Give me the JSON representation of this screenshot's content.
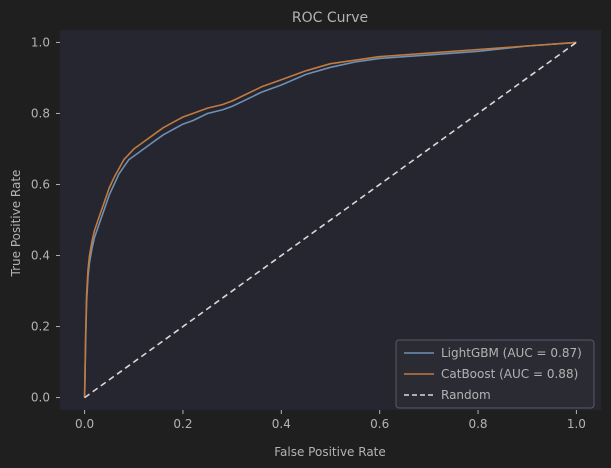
{
  "chart_data": {
    "type": "line",
    "title": "ROC Curve",
    "xlabel": "False Positive Rate",
    "ylabel": "True Positive Rate",
    "xlim": [
      -0.05,
      1.05
    ],
    "ylim": [
      -0.035,
      1.035
    ],
    "xticks": [
      0.0,
      0.2,
      0.4,
      0.6,
      0.8,
      1.0
    ],
    "yticks": [
      0.0,
      0.2,
      0.4,
      0.6,
      0.8,
      1.0
    ],
    "xtick_labels": [
      "0.0",
      "0.2",
      "0.4",
      "0.6",
      "0.8",
      "1.0"
    ],
    "ytick_labels": [
      "0.0",
      "0.2",
      "0.4",
      "0.6",
      "0.8",
      "1.0"
    ],
    "grid": false,
    "legend": {
      "position": "bottom-right"
    },
    "series": [
      {
        "name": "LightGBM (AUC = 0.87)",
        "color": "#6f8fb3",
        "style": "solid",
        "x": [
          0,
          0.002,
          0.004,
          0.007,
          0.01,
          0.015,
          0.02,
          0.03,
          0.04,
          0.05,
          0.06,
          0.07,
          0.08,
          0.09,
          0.1,
          0.12,
          0.14,
          0.16,
          0.18,
          0.2,
          0.22,
          0.25,
          0.28,
          0.3,
          0.33,
          0.36,
          0.4,
          0.45,
          0.5,
          0.55,
          0.6,
          0.7,
          0.8,
          0.9,
          1.0
        ],
        "y": [
          0,
          0.15,
          0.27,
          0.34,
          0.38,
          0.42,
          0.45,
          0.49,
          0.53,
          0.57,
          0.6,
          0.63,
          0.65,
          0.67,
          0.68,
          0.7,
          0.72,
          0.74,
          0.755,
          0.77,
          0.78,
          0.8,
          0.81,
          0.82,
          0.84,
          0.86,
          0.88,
          0.91,
          0.93,
          0.945,
          0.955,
          0.965,
          0.975,
          0.99,
          1.0
        ]
      },
      {
        "name": "CatBoost (AUC = 0.88)",
        "color": "#c07b3f",
        "style": "solid",
        "x": [
          0,
          0.002,
          0.004,
          0.007,
          0.01,
          0.015,
          0.02,
          0.03,
          0.04,
          0.05,
          0.06,
          0.07,
          0.08,
          0.09,
          0.1,
          0.12,
          0.14,
          0.16,
          0.18,
          0.2,
          0.22,
          0.25,
          0.28,
          0.3,
          0.33,
          0.36,
          0.4,
          0.45,
          0.5,
          0.55,
          0.6,
          0.7,
          0.8,
          0.9,
          1.0
        ],
        "y": [
          0,
          0.17,
          0.29,
          0.36,
          0.4,
          0.44,
          0.47,
          0.51,
          0.55,
          0.59,
          0.62,
          0.645,
          0.67,
          0.685,
          0.7,
          0.72,
          0.74,
          0.76,
          0.775,
          0.79,
          0.8,
          0.815,
          0.825,
          0.835,
          0.855,
          0.875,
          0.895,
          0.92,
          0.94,
          0.95,
          0.96,
          0.97,
          0.98,
          0.99,
          1.0
        ]
      },
      {
        "name": "Random",
        "color": "#d9d9d9",
        "style": "dashed",
        "x": [
          0,
          1
        ],
        "y": [
          0,
          1
        ]
      }
    ]
  },
  "colors": {
    "figure_bg": "#1f1f1f",
    "axes_bg": "#262630",
    "text": "#b3b3b3",
    "legend_bg": "#2b2b33",
    "legend_border": "#5a5a66"
  }
}
